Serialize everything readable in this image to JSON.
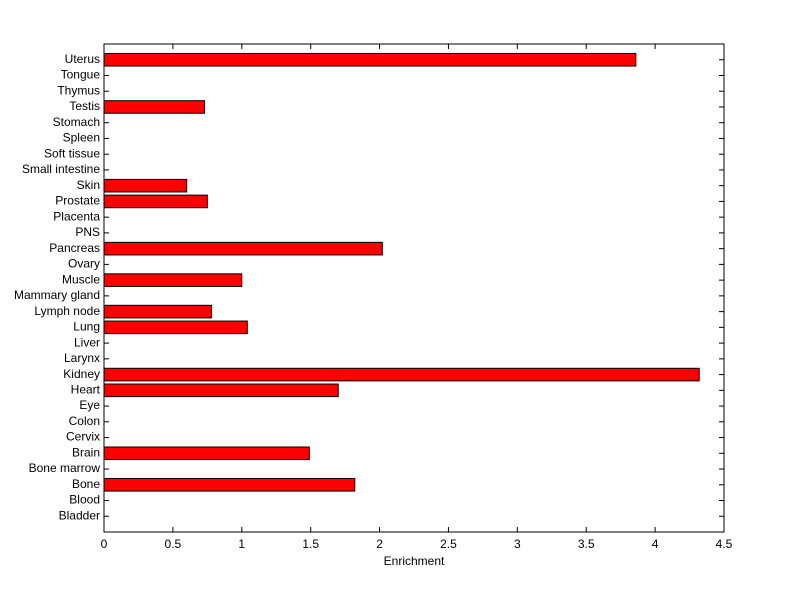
{
  "chart_data": {
    "type": "barh",
    "xlabel": "Enrichment",
    "categories": [
      "Uterus",
      "Tongue",
      "Thymus",
      "Testis",
      "Stomach",
      "Spleen",
      "Soft tissue",
      "Small intestine",
      "Skin",
      "Prostate",
      "Placenta",
      "PNS",
      "Pancreas",
      "Ovary",
      "Muscle",
      "Mammary gland",
      "Lymph node",
      "Lung",
      "Liver",
      "Larynx",
      "Kidney",
      "Heart",
      "Eye",
      "Colon",
      "Cervix",
      "Brain",
      "Bone marrow",
      "Bone",
      "Blood",
      "Bladder"
    ],
    "values": [
      3.86,
      0,
      0,
      0.73,
      0,
      0,
      0,
      0,
      0.6,
      0.75,
      0,
      0,
      2.02,
      0,
      1.0,
      0,
      0.78,
      1.04,
      0,
      0,
      4.32,
      1.7,
      0,
      0,
      0,
      1.49,
      0,
      1.82,
      0,
      0
    ],
    "color": "#ff0000",
    "xlim": [
      0,
      4.5
    ],
    "xticks": [
      0,
      0.5,
      1,
      1.5,
      2,
      2.5,
      3,
      3.5,
      4,
      4.5
    ]
  }
}
